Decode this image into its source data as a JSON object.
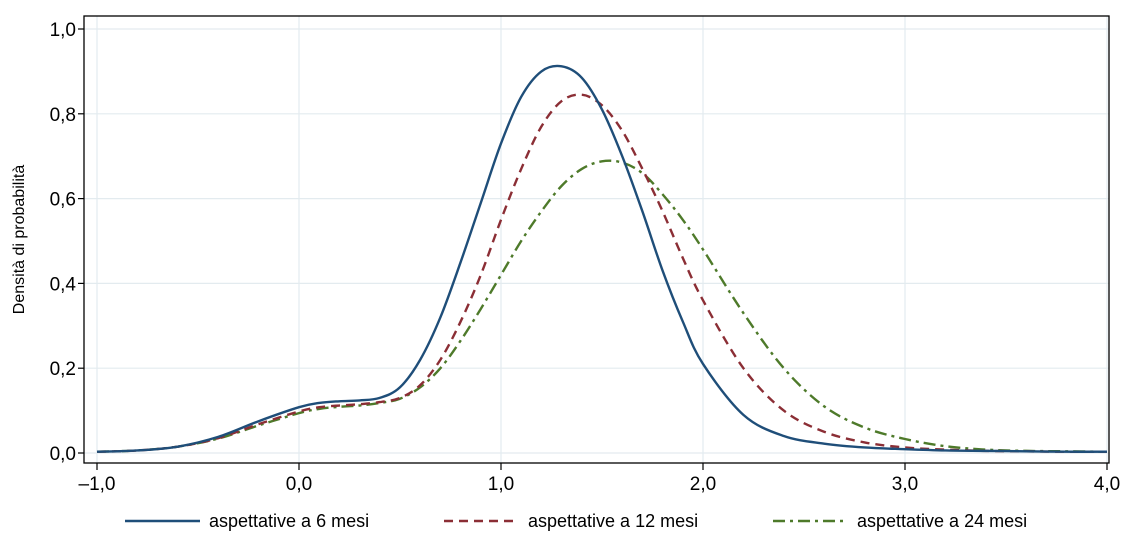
{
  "chart_data": {
    "type": "line",
    "xlabel": "",
    "ylabel": "Densità di probabilità",
    "xlim": [
      -1.0,
      4.0
    ],
    "ylim": [
      0.0,
      1.0
    ],
    "grid": true,
    "legend_position": "bottom",
    "x_ticks": [
      -1.0,
      0.0,
      1.0,
      2.0,
      3.0,
      4.0
    ],
    "x_tick_labels": [
      "–1,0",
      "0,0",
      "1,0",
      "2,0",
      "3,0",
      "4,0"
    ],
    "y_ticks": [
      0.0,
      0.2,
      0.4,
      0.6,
      0.8,
      1.0
    ],
    "y_tick_labels": [
      "0,0",
      "0,2",
      "0,4",
      "0,6",
      "0,8",
      "1,0"
    ],
    "x": [
      -1.0,
      -0.8,
      -0.6,
      -0.4,
      -0.2,
      0.0,
      0.1,
      0.2,
      0.3,
      0.4,
      0.5,
      0.6,
      0.7,
      0.8,
      0.9,
      1.0,
      1.1,
      1.2,
      1.3,
      1.4,
      1.5,
      1.6,
      1.7,
      1.8,
      1.9,
      2.0,
      2.2,
      2.4,
      2.6,
      2.8,
      3.0,
      3.2,
      3.4,
      3.6,
      3.8,
      4.0
    ],
    "series": [
      {
        "name": "aspettative a 6 mesi",
        "color": "#1f4e79",
        "dash": "solid",
        "values": [
          0.003,
          0.006,
          0.015,
          0.038,
          0.075,
          0.108,
          0.118,
          0.122,
          0.124,
          0.13,
          0.155,
          0.22,
          0.32,
          0.45,
          0.59,
          0.73,
          0.84,
          0.9,
          0.912,
          0.885,
          0.81,
          0.7,
          0.57,
          0.43,
          0.31,
          0.21,
          0.09,
          0.04,
          0.022,
          0.013,
          0.009,
          0.006,
          0.005,
          0.004,
          0.003,
          0.003
        ]
      },
      {
        "name": "aspettative a 12 mesi",
        "color": "#8b2e35",
        "dash": "dashed",
        "values": [
          0.003,
          0.006,
          0.015,
          0.035,
          0.068,
          0.098,
          0.108,
          0.112,
          0.115,
          0.12,
          0.13,
          0.16,
          0.22,
          0.31,
          0.42,
          0.55,
          0.67,
          0.77,
          0.83,
          0.845,
          0.82,
          0.76,
          0.67,
          0.57,
          0.46,
          0.36,
          0.2,
          0.1,
          0.05,
          0.025,
          0.013,
          0.008,
          0.005,
          0.004,
          0.003,
          0.003
        ]
      },
      {
        "name": "aspettative a 24 mesi",
        "color": "#4e7a2a",
        "dash": "dashdot",
        "values": [
          0.003,
          0.006,
          0.015,
          0.034,
          0.065,
          0.094,
          0.104,
          0.109,
          0.112,
          0.118,
          0.128,
          0.155,
          0.2,
          0.265,
          0.34,
          0.42,
          0.5,
          0.57,
          0.63,
          0.67,
          0.688,
          0.685,
          0.66,
          0.61,
          0.55,
          0.48,
          0.33,
          0.2,
          0.11,
          0.06,
          0.033,
          0.016,
          0.008,
          0.005,
          0.004,
          0.003
        ]
      }
    ]
  }
}
